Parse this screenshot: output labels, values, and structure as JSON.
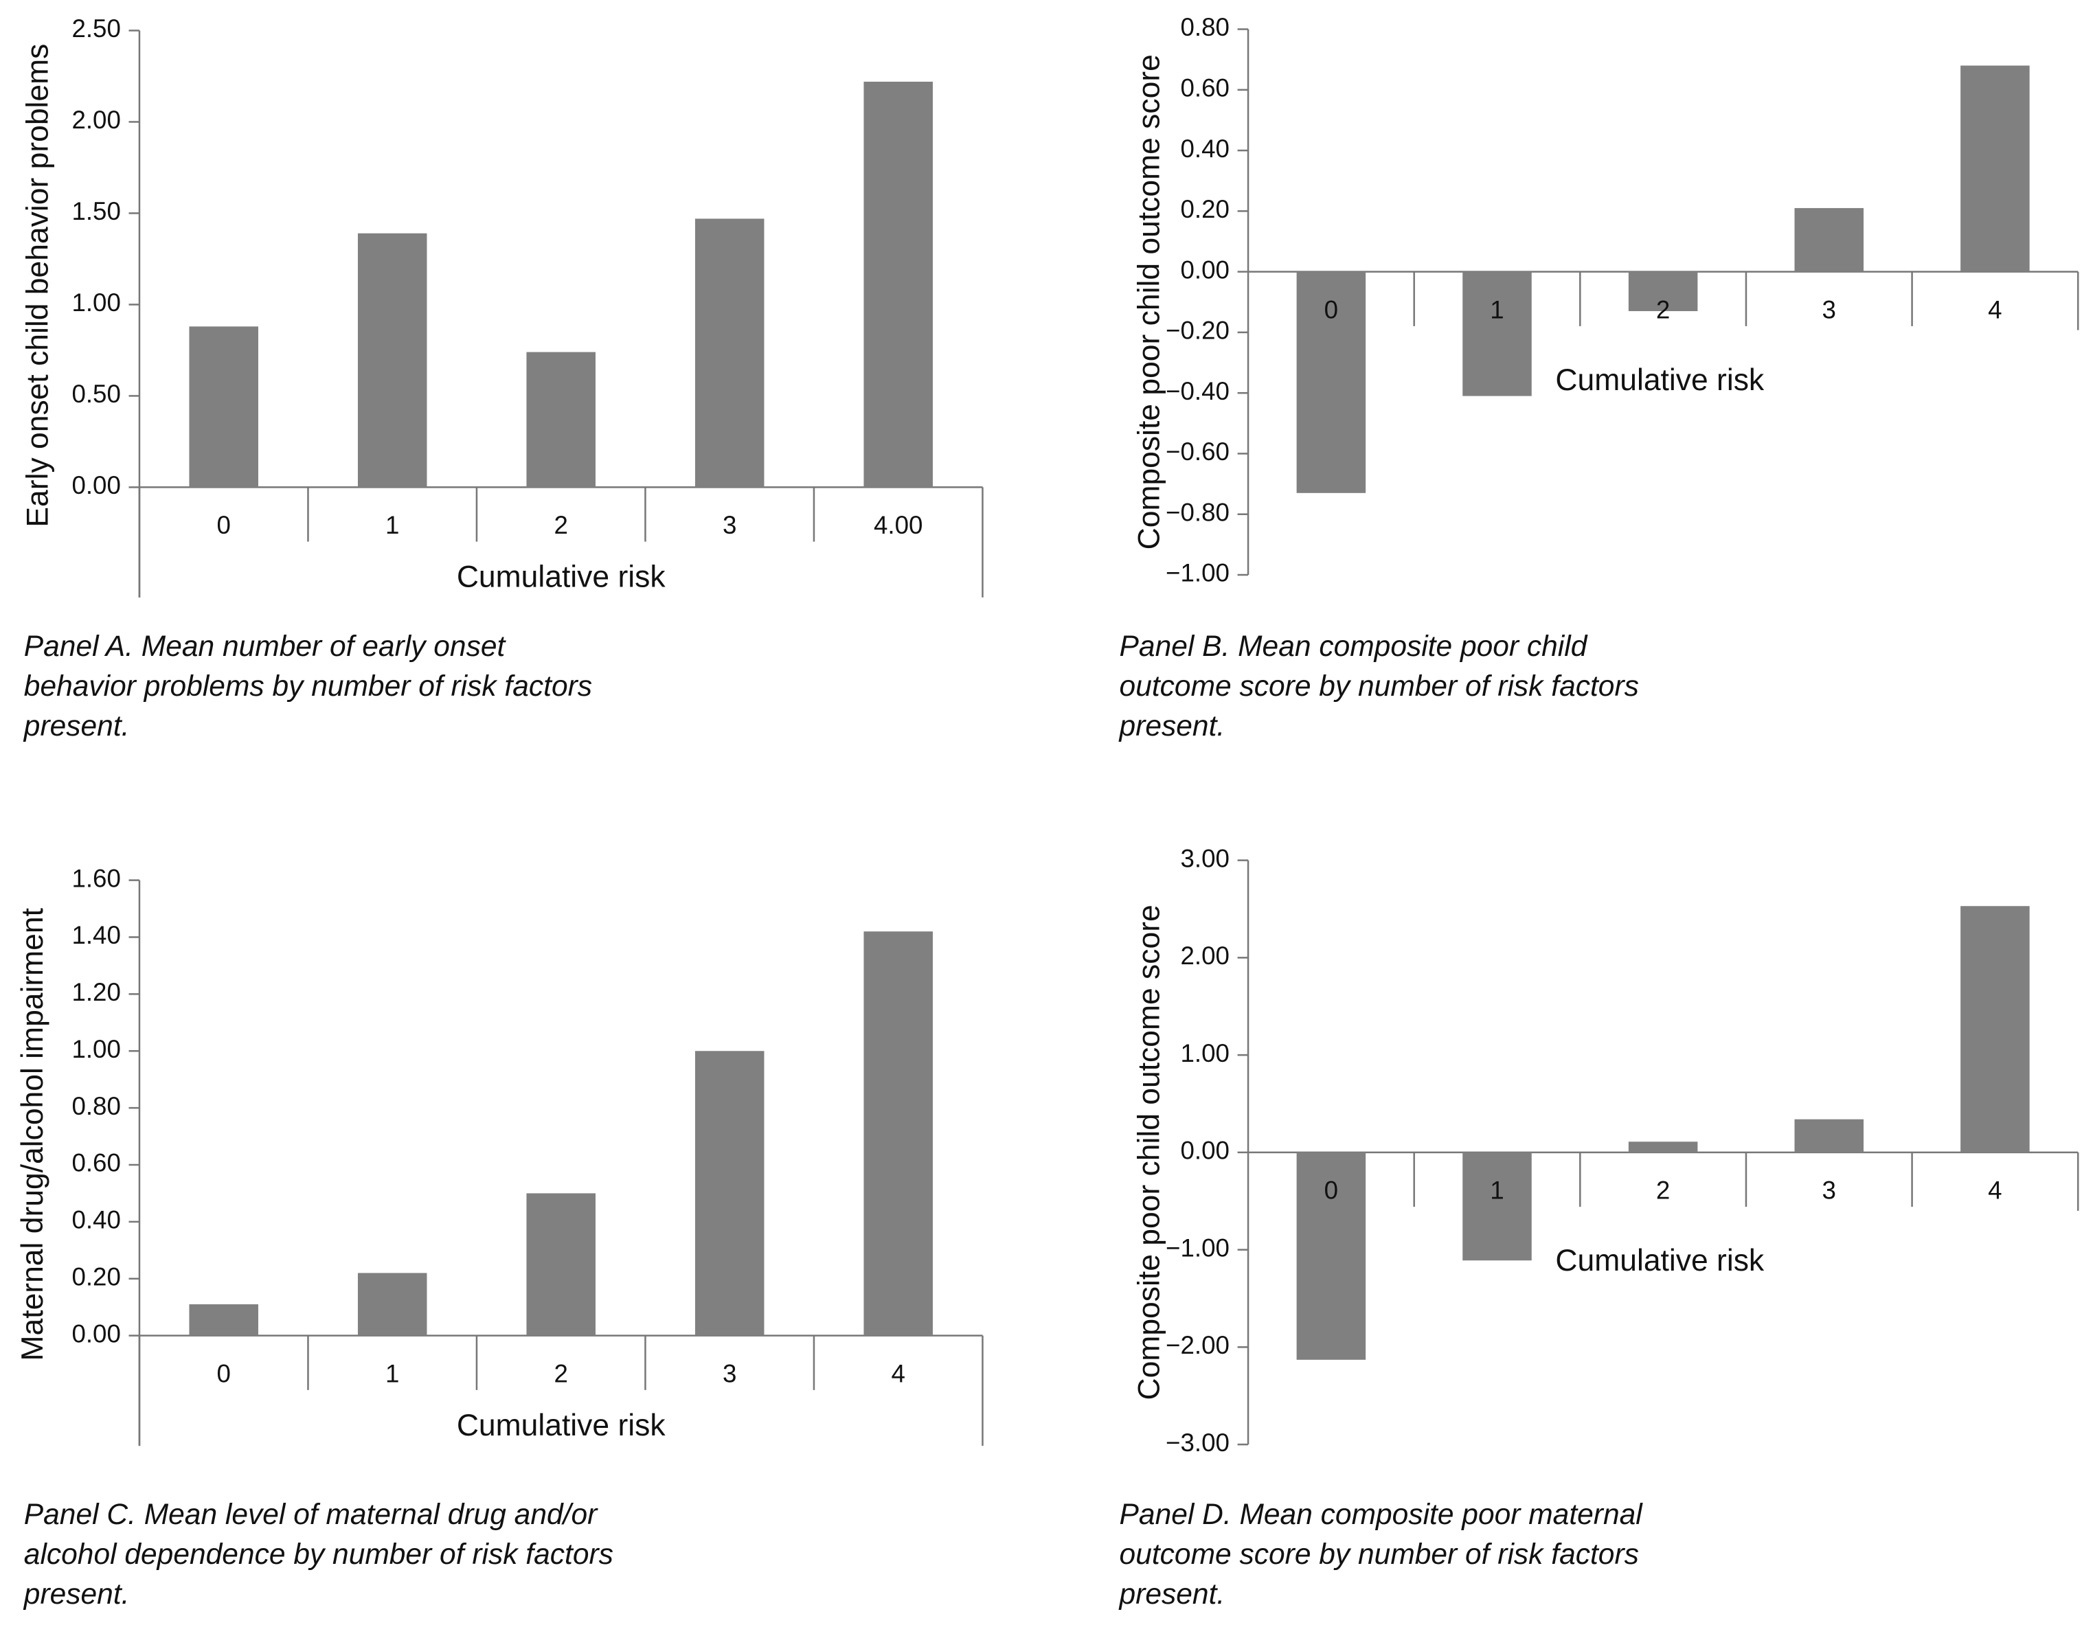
{
  "chart_data": [
    {
      "type": "bar",
      "color": "#808080",
      "y_label": "Early onset child behavior problems",
      "x_label": "Cumulative risk",
      "caption": "Panel A. Mean number of early onset behavior problems by number of risk factors present.",
      "categories": [
        "0",
        "1",
        "2",
        "3",
        "4.00"
      ],
      "values": [
        0.88,
        1.39,
        0.74,
        1.47,
        2.22
      ],
      "ylim": [
        0,
        2.5
      ],
      "yticks": [
        {
          "value": 0,
          "label": "0.00"
        },
        {
          "value": 0.5,
          "label": "0.50"
        },
        {
          "value": 1,
          "label": "1.00"
        },
        {
          "value": 1.5,
          "label": "1.50"
        },
        {
          "value": 2,
          "label": "2.00"
        },
        {
          "value": 2.5,
          "label": "2.50"
        }
      ]
    },
    {
      "type": "bar",
      "color": "#808080",
      "y_label": "Composite poor child outcome score",
      "x_label": "Cumulative risk",
      "caption": "Panel B. Mean composite poor child outcome score by number of risk factors present.",
      "categories": [
        "0",
        "1",
        "2",
        "3",
        "4"
      ],
      "values": [
        -0.73,
        -0.41,
        -0.13,
        0.21,
        0.68
      ],
      "ylim": [
        -1,
        0.8
      ],
      "yticks": [
        {
          "value": -1,
          "label": "−1.00"
        },
        {
          "value": -0.8,
          "label": "−0.80"
        },
        {
          "value": -0.6,
          "label": "−0.60"
        },
        {
          "value": -0.4,
          "label": "−0.40"
        },
        {
          "value": -0.2,
          "label": "−0.20"
        },
        {
          "value": 0,
          "label": "0.00"
        },
        {
          "value": 0.2,
          "label": "0.20"
        },
        {
          "value": 0.4,
          "label": "0.40"
        },
        {
          "value": 0.6,
          "label": "0.60"
        },
        {
          "value": 0.8,
          "label": "0.80"
        }
      ]
    },
    {
      "type": "bar",
      "color": "#808080",
      "y_label": "Maternal drug/alcohol impairment",
      "x_label": "Cumulative risk",
      "caption": "Panel C. Mean level of maternal drug and/or alcohol dependence by number of risk factors present.",
      "categories": [
        "0",
        "1",
        "2",
        "3",
        "4"
      ],
      "values": [
        0.11,
        0.22,
        0.5,
        1.0,
        1.42
      ],
      "ylim": [
        0,
        1.6
      ],
      "yticks": [
        {
          "value": 0,
          "label": "0.00"
        },
        {
          "value": 0.2,
          "label": "0.20"
        },
        {
          "value": 0.4,
          "label": "0.40"
        },
        {
          "value": 0.6,
          "label": "0.60"
        },
        {
          "value": 0.8,
          "label": "0.80"
        },
        {
          "value": 1,
          "label": "1.00"
        },
        {
          "value": 1.2,
          "label": "1.20"
        },
        {
          "value": 1.4,
          "label": "1.40"
        },
        {
          "value": 1.6,
          "label": "1.60"
        }
      ]
    },
    {
      "type": "bar",
      "color": "#808080",
      "y_label": "Composite poor child outcome score",
      "x_label": "Cumulative risk",
      "caption": "Panel D. Mean composite poor maternal outcome score by number of risk factors present.",
      "categories": [
        "0",
        "1",
        "2",
        "3",
        "4"
      ],
      "values": [
        -2.13,
        -1.11,
        0.11,
        0.34,
        2.53
      ],
      "ylim": [
        -3,
        3
      ],
      "yticks": [
        {
          "value": -3,
          "label": "−3.00"
        },
        {
          "value": -2,
          "label": "−2.00"
        },
        {
          "value": -1,
          "label": "−1.00"
        },
        {
          "value": 0,
          "label": "0.00"
        },
        {
          "value": 1,
          "label": "1.00"
        },
        {
          "value": 2,
          "label": "2.00"
        },
        {
          "value": 3,
          "label": "3.00"
        }
      ]
    }
  ]
}
